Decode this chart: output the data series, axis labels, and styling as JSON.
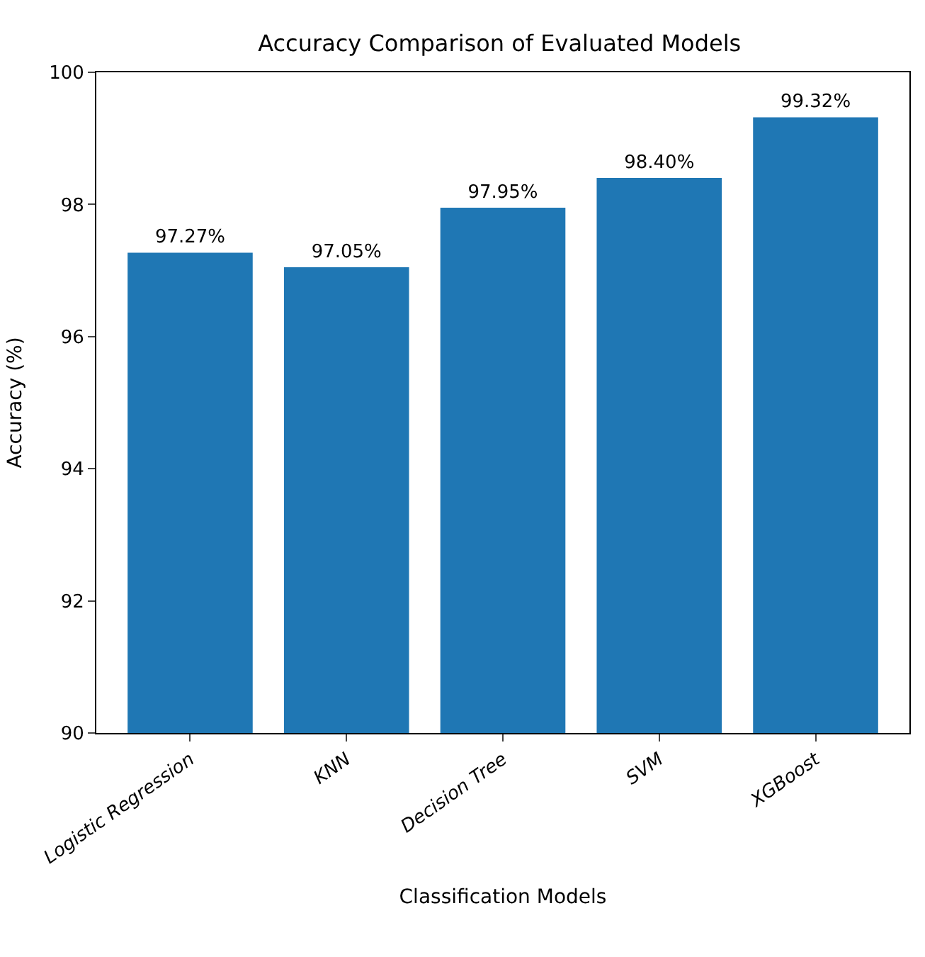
{
  "chart_data": {
    "type": "bar",
    "title": "Accuracy Comparison of Evaluated Models",
    "xlabel": "Classification Models",
    "ylabel": "Accuracy (%)",
    "categories": [
      "Logistic Regression",
      "KNN",
      "Decision Tree",
      "SVM",
      "XGBoost"
    ],
    "values": [
      97.27,
      97.05,
      97.95,
      98.4,
      99.32
    ],
    "value_labels": [
      "97.27%",
      "97.05%",
      "97.95%",
      "98.40%",
      "99.32%"
    ],
    "color": "#1f77b4",
    "ylim": [
      90,
      100
    ],
    "yticks": [
      90,
      92,
      94,
      96,
      98,
      100
    ]
  }
}
